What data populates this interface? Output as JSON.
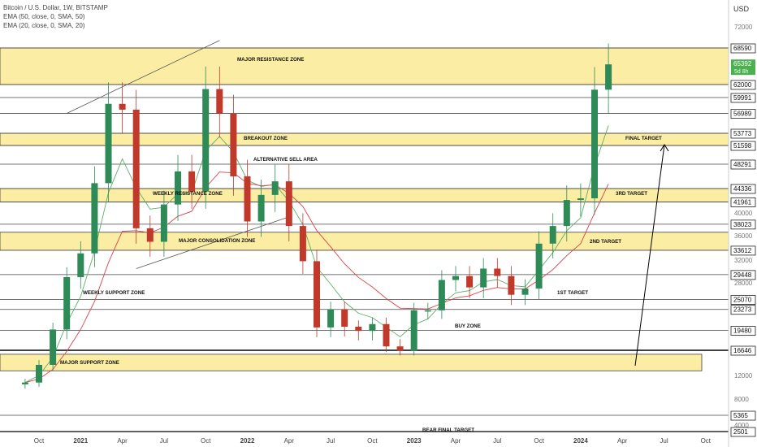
{
  "header": {
    "title": "Bitcoin / U.S. Dollar, 1W, BITSTAMP",
    "indicators": [
      "EMA (50, close, 0, SMA, 50)",
      "EMA (20, close, 0, SMA, 20)"
    ],
    "currency": "USD"
  },
  "colors": {
    "up": "#26a69a",
    "up_body": "#2e8b57",
    "down": "#c0392b",
    "zone_fill": "#fbeea4",
    "ema50": "#5fae6a",
    "ema20": "#d9434b",
    "price_badge": "#4caf50"
  },
  "chart_data": {
    "type": "candlestick",
    "ylim": [
      2501,
      72000
    ],
    "x_axis": {
      "start": "2020-09",
      "end": "2024-11",
      "ticks": [
        {
          "label": "Oct",
          "date": "2020-10"
        },
        {
          "label": "2021",
          "date": "2021-01",
          "bold": true
        },
        {
          "label": "Apr",
          "date": "2021-04"
        },
        {
          "label": "Jul",
          "date": "2021-07"
        },
        {
          "label": "Oct",
          "date": "2021-10"
        },
        {
          "label": "2022",
          "date": "2022-01",
          "bold": true
        },
        {
          "label": "Apr",
          "date": "2022-04"
        },
        {
          "label": "Jul",
          "date": "2022-07"
        },
        {
          "label": "Oct",
          "date": "2022-10"
        },
        {
          "label": "2023",
          "date": "2023-01",
          "bold": true
        },
        {
          "label": "Apr",
          "date": "2023-04"
        },
        {
          "label": "Jul",
          "date": "2023-07"
        },
        {
          "label": "Oct",
          "date": "2023-10"
        },
        {
          "label": "2024",
          "date": "2024-01",
          "bold": true
        },
        {
          "label": "Apr",
          "date": "2024-04"
        },
        {
          "label": "Jul",
          "date": "2024-07"
        },
        {
          "label": "Oct",
          "date": "2024-10"
        }
      ]
    },
    "y_ticks": [
      "72000",
      "64000",
      "56000",
      "48000",
      "40000",
      "36000",
      "32000",
      "28000",
      "24000",
      "20000",
      "16000",
      "12000",
      "8000",
      "4000"
    ],
    "price_labels": [
      {
        "text": "68590",
        "value": 68590
      },
      {
        "text": "65392",
        "value": 65392,
        "highlight": true,
        "sub": "5d 8h"
      },
      {
        "text": "62000",
        "value": 62000
      },
      {
        "text": "59991",
        "value": 59991
      },
      {
        "text": "56989",
        "value": 56989
      },
      {
        "text": "53773",
        "value": 53773
      },
      {
        "text": "51598",
        "value": 51598
      },
      {
        "text": "48291",
        "value": 48291
      },
      {
        "text": "44336",
        "value": 44336
      },
      {
        "text": "41961",
        "value": 41961
      },
      {
        "text": "38023",
        "value": 38023
      },
      {
        "text": "33612",
        "value": 33612
      },
      {
        "text": "29448",
        "value": 29448
      },
      {
        "text": "25070",
        "value": 25070
      },
      {
        "text": "23273",
        "value": 23273
      },
      {
        "text": "19480",
        "value": 19480
      },
      {
        "text": "16646",
        "value": 16646
      },
      {
        "text": "5365",
        "value": 5365
      },
      {
        "text": "2501",
        "value": 2501
      }
    ],
    "zones": [
      {
        "label": "MAJOR RESISTANCE ZONE",
        "from": 62000,
        "to": 68590
      },
      {
        "label": "BREAKOUT ZONE",
        "from": 51598,
        "to": 53773
      },
      {
        "label": "WEEKLY RESISTANCE ZONE",
        "from": 41961,
        "to": 44336
      },
      {
        "label": "MAJOR CONSOLIDATION ZONE",
        "from": 33612,
        "to": 36600
      },
      {
        "label": "MAJOR SUPPORT ZONE",
        "from": 12800,
        "to": 15600
      }
    ],
    "annotations": [
      {
        "label": "ALTERNATIVE SELL AREA",
        "date": "2022-02",
        "value": 49400
      },
      {
        "label": "WEEKLY SUPPORT ZONE",
        "date": "2020-12",
        "value": 27200
      },
      {
        "label": "BUY ZONE",
        "date": "2023-04",
        "value": 20300
      },
      {
        "label": "1ST TARGET",
        "date": "2023-12",
        "value": 27200
      },
      {
        "label": "2ND TARGET",
        "date": "2024-02",
        "value": 35000
      },
      {
        "label": "3RD TARGET",
        "date": "2024-04",
        "value": 42800
      },
      {
        "label": "FINAL TARGET",
        "date": "2024-04",
        "value": 52900
      },
      {
        "label": "BEAR FINAL TARGET",
        "date": "2023-01",
        "value": 3000
      }
    ],
    "trendlines": [
      {
        "from": {
          "date": "2020-12",
          "value": 57000
        },
        "to": {
          "date": "2021-11",
          "value": 69800
        }
      },
      {
        "from": {
          "date": "2021-05",
          "value": 30500
        },
        "to": {
          "date": "2022-04",
          "value": 39300
        }
      }
    ],
    "arrow": {
      "from": {
        "date": "2024-06",
        "value": 14000
      },
      "to": {
        "date": "2024-07",
        "value": 51300
      }
    },
    "bear_line_value": 2501,
    "candles": [
      {
        "date": "2020-09",
        "o": 10500,
        "c": 10800
      },
      {
        "date": "2020-10",
        "o": 10800,
        "c": 13800
      },
      {
        "date": "2020-11",
        "o": 13800,
        "c": 19600
      },
      {
        "date": "2020-12",
        "o": 19600,
        "c": 29000
      },
      {
        "date": "2021-01",
        "o": 29000,
        "c": 33100
      },
      {
        "date": "2021-02",
        "o": 33100,
        "c": 45200
      },
      {
        "date": "2021-03",
        "o": 45200,
        "c": 58800
      },
      {
        "date": "2021-04",
        "o": 58800,
        "c": 57700
      },
      {
        "date": "2021-05",
        "o": 57700,
        "c": 37300
      },
      {
        "date": "2021-06",
        "o": 37300,
        "c": 35000
      },
      {
        "date": "2021-07",
        "o": 35000,
        "c": 41500
      },
      {
        "date": "2021-08",
        "o": 41500,
        "c": 47100
      },
      {
        "date": "2021-09",
        "o": 47100,
        "c": 43800
      },
      {
        "date": "2021-10",
        "o": 43800,
        "c": 61300
      },
      {
        "date": "2021-11",
        "o": 61300,
        "c": 57000
      },
      {
        "date": "2021-12",
        "o": 57000,
        "c": 46300
      },
      {
        "date": "2022-01",
        "o": 46300,
        "c": 38500
      },
      {
        "date": "2022-02",
        "o": 38500,
        "c": 43200
      },
      {
        "date": "2022-03",
        "o": 43200,
        "c": 45500
      },
      {
        "date": "2022-04",
        "o": 45500,
        "c": 37700
      },
      {
        "date": "2022-05",
        "o": 37700,
        "c": 31800
      },
      {
        "date": "2022-06",
        "o": 31800,
        "c": 19900
      },
      {
        "date": "2022-07",
        "o": 19900,
        "c": 23300
      },
      {
        "date": "2022-08",
        "o": 23300,
        "c": 20000
      },
      {
        "date": "2022-09",
        "o": 20000,
        "c": 19400
      },
      {
        "date": "2022-10",
        "o": 19400,
        "c": 20500
      },
      {
        "date": "2022-11",
        "o": 20500,
        "c": 17200
      },
      {
        "date": "2022-12",
        "o": 17200,
        "c": 16550
      },
      {
        "date": "2023-01",
        "o": 16550,
        "c": 23100
      },
      {
        "date": "2023-02",
        "o": 23100,
        "c": 23100
      },
      {
        "date": "2023-03",
        "o": 23100,
        "c": 28500
      },
      {
        "date": "2023-04",
        "o": 28500,
        "c": 29200
      },
      {
        "date": "2023-05",
        "o": 29200,
        "c": 27200
      },
      {
        "date": "2023-06",
        "o": 27200,
        "c": 30500
      },
      {
        "date": "2023-07",
        "o": 30500,
        "c": 29200
      },
      {
        "date": "2023-08",
        "o": 29200,
        "c": 25900
      },
      {
        "date": "2023-09",
        "o": 25900,
        "c": 27000
      },
      {
        "date": "2023-10",
        "o": 27000,
        "c": 34700
      },
      {
        "date": "2023-11",
        "o": 34700,
        "c": 37700
      },
      {
        "date": "2023-12",
        "o": 37700,
        "c": 42300
      },
      {
        "date": "2024-01",
        "o": 42300,
        "c": 42600
      },
      {
        "date": "2024-02",
        "o": 42600,
        "c": 61200
      },
      {
        "date": "2024-03",
        "o": 61200,
        "c": 65392
      }
    ]
  }
}
